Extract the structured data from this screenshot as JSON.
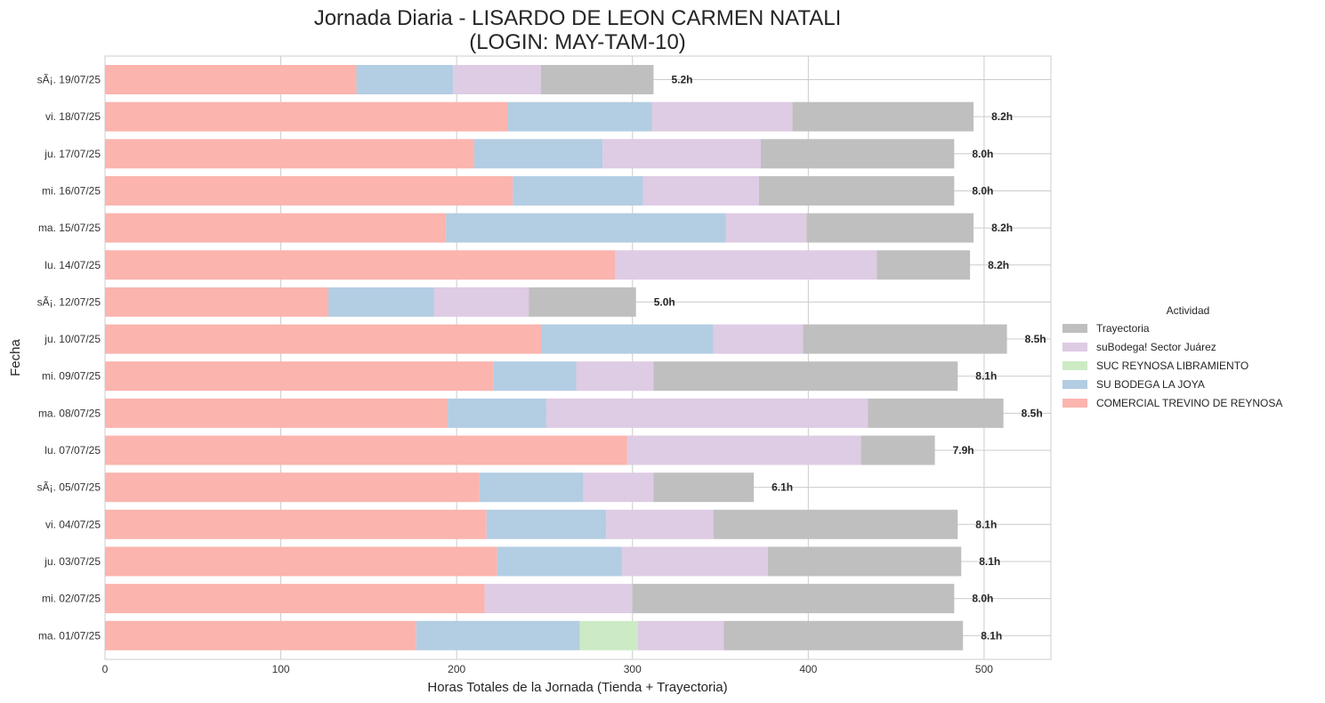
{
  "chart_data": {
    "type": "bar",
    "orientation": "horizontal",
    "stacked": true,
    "title_line1": "Jornada Diaria - LISARDO DE LEON CARMEN NATALI",
    "title_line2": "(LOGIN: MAY-TAM-10)",
    "xlabel": "Horas Totales de la Jornada (Tienda + Trayectoria)",
    "ylabel": "Fecha",
    "xlim": [
      0,
      538
    ],
    "xticks": [
      0,
      100,
      200,
      300,
      400,
      500
    ],
    "grid": true,
    "legend_position": "right",
    "legend_title": "Actividad",
    "categories": [
      "sÃ¡. 19/07/25",
      "vi. 18/07/25",
      "ju. 17/07/25",
      "mi. 16/07/25",
      "ma. 15/07/25",
      "lu. 14/07/25",
      "sÃ¡. 12/07/25",
      "ju. 10/07/25",
      "mi. 09/07/25",
      "ma. 08/07/25",
      "lu. 07/07/25",
      "sÃ¡. 05/07/25",
      "vi. 04/07/25",
      "ju. 03/07/25",
      "mi. 02/07/25",
      "ma. 01/07/25"
    ],
    "totals": [
      "5.2h",
      "8.2h",
      "8.0h",
      "8.0h",
      "8.2h",
      "8.2h",
      "5.0h",
      "8.5h",
      "8.1h",
      "8.5h",
      "7.9h",
      "6.1h",
      "8.1h",
      "8.1h",
      "8.0h",
      "8.1h"
    ],
    "series": [
      {
        "name": "COMERCIAL TREVINO DE REYNOSA",
        "color": "#fbb4ae",
        "values": [
          143,
          229,
          210,
          232,
          194,
          290,
          127,
          248,
          221,
          195,
          297,
          213,
          217,
          223,
          216,
          177
        ]
      },
      {
        "name": "SU BODEGA LA JOYA",
        "color": "#b3cde3",
        "values": [
          55,
          82,
          73,
          74,
          159,
          0,
          60,
          98,
          47,
          56,
          0,
          59,
          68,
          71,
          0,
          93
        ]
      },
      {
        "name": "SUC REYNOSA LIBRAMIENTO",
        "color": "#ccebc5",
        "values": [
          0,
          0,
          0,
          0,
          0,
          0,
          0,
          0,
          0,
          0,
          0,
          0,
          0,
          0,
          0,
          33
        ]
      },
      {
        "name": "suBodega! Sector Juárez",
        "color": "#decbe4",
        "values": [
          50,
          80,
          90,
          66,
          46,
          149,
          54,
          51,
          44,
          183,
          133,
          40,
          61,
          83,
          84,
          49
        ]
      },
      {
        "name": "Trayectoria",
        "color": "#bfbfbf",
        "values": [
          64,
          103,
          110,
          111,
          95,
          53,
          61,
          116,
          173,
          77,
          42,
          57,
          139,
          110,
          183,
          136
        ]
      }
    ]
  }
}
